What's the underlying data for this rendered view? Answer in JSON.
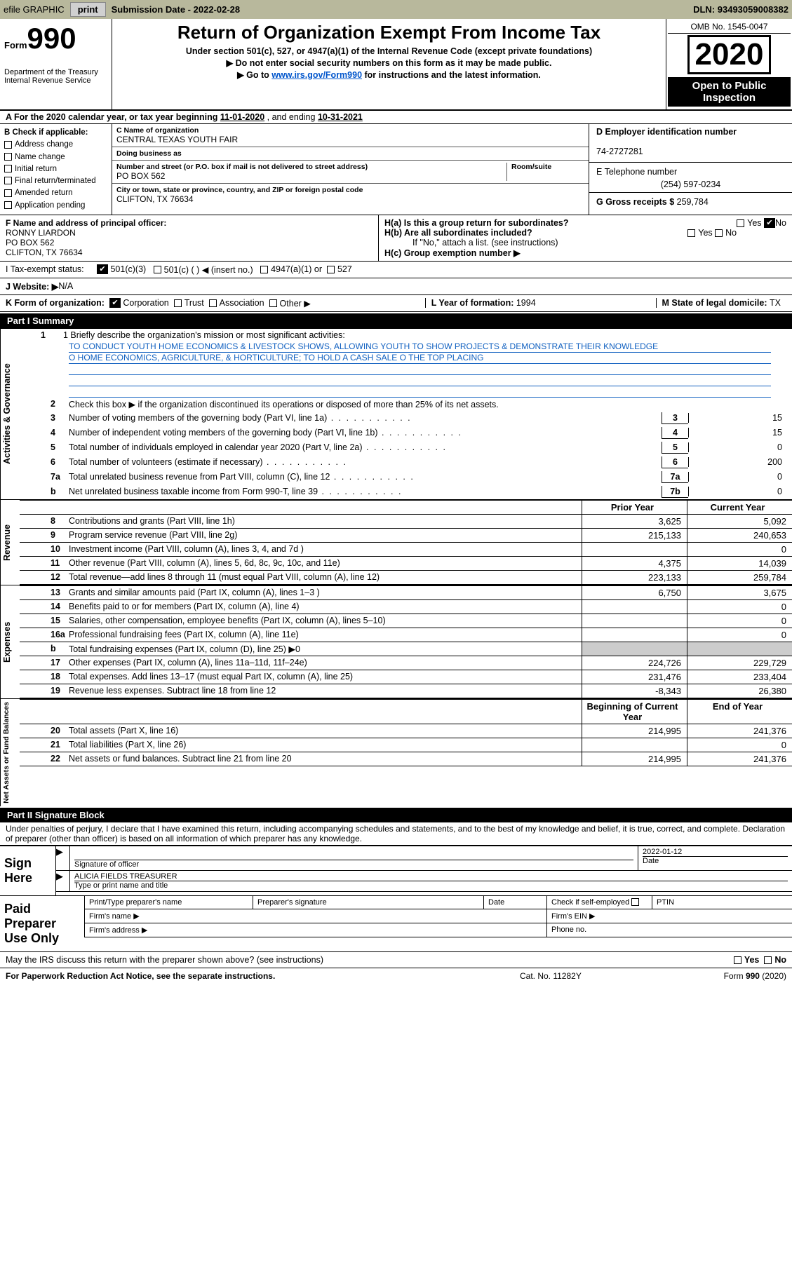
{
  "topbar": {
    "efile": "efile GRAPHIC",
    "print": "print",
    "subdate_lbl": "Submission Date - ",
    "subdate": "2022-02-28",
    "dln_lbl": "DLN: ",
    "dln": "93493059008382"
  },
  "header": {
    "form_prefix": "Form",
    "form_num": "990",
    "dept": "Department of the Treasury\nInternal Revenue Service",
    "title": "Return of Organization Exempt From Income Tax",
    "sub1": "Under section 501(c), 527, or 4947(a)(1) of the Internal Revenue Code (except private foundations)",
    "sub2": "▶ Do not enter social security numbers on this form as it may be made public.",
    "sub3_pre": "▶ Go to ",
    "sub3_link": "www.irs.gov/Form990",
    "sub3_post": " for instructions and the latest information.",
    "omb": "OMB No. 1545-0047",
    "year": "2020",
    "openpub": "Open to Public Inspection"
  },
  "rowA": {
    "pre": "A For the 2020 calendar year, or tax year beginning ",
    "begin": "11-01-2020",
    "mid": "   , and ending ",
    "end": "10-31-2021"
  },
  "boxB": {
    "hdr": "B Check if applicable:",
    "items": [
      "Address change",
      "Name change",
      "Initial return",
      "Final return/terminated",
      "Amended return",
      "Application pending"
    ]
  },
  "boxC": {
    "name_lbl": "C Name of organization",
    "name": "CENTRAL TEXAS YOUTH FAIR",
    "dba_lbl": "Doing business as",
    "dba": "",
    "addr_lbl": "Number and street (or P.O. box if mail is not delivered to street address)",
    "room_lbl": "Room/suite",
    "addr": "PO BOX 562",
    "city_lbl": "City or town, state or province, country, and ZIP or foreign postal code",
    "city": "CLIFTON, TX  76634"
  },
  "boxD": {
    "ein_lbl": "D Employer identification number",
    "ein": "74-2727281",
    "phone_lbl": "E Telephone number",
    "phone": "(254) 597-0234",
    "gross_lbl": "G Gross receipts $ ",
    "gross": "259,784"
  },
  "boxF": {
    "lbl": "F Name and address of principal officer:",
    "name": "RONNY LIARDON",
    "addr": "PO BOX 562",
    "city": "CLIFTON, TX  76634"
  },
  "boxH": {
    "ha": "H(a)  Is this a group return for subordinates?",
    "hb": "H(b)  Are all subordinates included?",
    "hb_note": "If \"No,\" attach a list. (see instructions)",
    "hc": "H(c)  Group exemption number ▶",
    "yes": "Yes",
    "no": "No"
  },
  "status": {
    "lbl": "I   Tax-exempt status:",
    "o1": "501(c)(3)",
    "o2": "501(c) (   ) ◀ (insert no.)",
    "o3": "4947(a)(1) or",
    "o4": "527"
  },
  "website": {
    "lbl": "J   Website: ▶",
    "val": "  N/A"
  },
  "krow": {
    "k": "K Form of organization:",
    "opts": [
      "Corporation",
      "Trust",
      "Association",
      "Other ▶"
    ],
    "L": "L Year of formation: ",
    "Lval": "1994",
    "M": "M State of legal domicile: ",
    "Mval": "TX"
  },
  "partI": {
    "hdr": "Part I      Summary",
    "mission_lbl": "1   Briefly describe the organization's mission or most significant activities:",
    "mission1": "TO CONDUCT YOUTH HOME ECONOMICS & LIVESTOCK SHOWS, ALLOWING YOUTH TO SHOW PROJECTS & DEMONSTRATE THEIR KNOWLEDGE",
    "mission2": "O HOME ECONOMICS, AGRICULTURE, & HORTICULTURE; TO HOLD A CASH SALE O THE TOP PLACING",
    "l2": "Check this box ▶        if the organization discontinued its operations or disposed of more than 25% of its net assets.",
    "side_act": "Activities & Governance",
    "side_rev": "Revenue",
    "side_exp": "Expenses",
    "side_net": "Net Assets or Fund Balances",
    "hdr_prior": "Prior Year",
    "hdr_curr": "Current Year",
    "hdr_begin": "Beginning of Current Year",
    "hdr_end": "End of Year",
    "rows_gov": [
      {
        "n": "3",
        "t": "Number of voting members of the governing body (Part VI, line 1a)",
        "c": "3",
        "v": "15"
      },
      {
        "n": "4",
        "t": "Number of independent voting members of the governing body (Part VI, line 1b)",
        "c": "4",
        "v": "15"
      },
      {
        "n": "5",
        "t": "Total number of individuals employed in calendar year 2020 (Part V, line 2a)",
        "c": "5",
        "v": "0"
      },
      {
        "n": "6",
        "t": "Total number of volunteers (estimate if necessary)",
        "c": "6",
        "v": "200"
      },
      {
        "n": "7a",
        "t": "Total unrelated business revenue from Part VIII, column (C), line 12",
        "c": "7a",
        "v": "0"
      },
      {
        "n": "b",
        "t": "Net unrelated business taxable income from Form 990-T, line 39",
        "c": "7b",
        "v": "0"
      }
    ],
    "rows_rev": [
      {
        "n": "8",
        "t": "Contributions and grants (Part VIII, line 1h)",
        "p": "3,625",
        "c": "5,092"
      },
      {
        "n": "9",
        "t": "Program service revenue (Part VIII, line 2g)",
        "p": "215,133",
        "c": "240,653"
      },
      {
        "n": "10",
        "t": "Investment income (Part VIII, column (A), lines 3, 4, and 7d )",
        "p": "",
        "c": "0"
      },
      {
        "n": "11",
        "t": "Other revenue (Part VIII, column (A), lines 5, 6d, 8c, 9c, 10c, and 11e)",
        "p": "4,375",
        "c": "14,039"
      },
      {
        "n": "12",
        "t": "Total revenue—add lines 8 through 11 (must equal Part VIII, column (A), line 12)",
        "p": "223,133",
        "c": "259,784"
      }
    ],
    "rows_exp": [
      {
        "n": "13",
        "t": "Grants and similar amounts paid (Part IX, column (A), lines 1–3 )",
        "p": "6,750",
        "c": "3,675"
      },
      {
        "n": "14",
        "t": "Benefits paid to or for members (Part IX, column (A), line 4)",
        "p": "",
        "c": "0"
      },
      {
        "n": "15",
        "t": "Salaries, other compensation, employee benefits (Part IX, column (A), lines 5–10)",
        "p": "",
        "c": "0"
      },
      {
        "n": "16a",
        "t": "Professional fundraising fees (Part IX, column (A), line 11e)",
        "p": "",
        "c": "0"
      },
      {
        "n": "b",
        "t": "Total fundraising expenses (Part IX, column (D), line 25) ▶0",
        "p": "shade",
        "c": "shade"
      },
      {
        "n": "17",
        "t": "Other expenses (Part IX, column (A), lines 11a–11d, 11f–24e)",
        "p": "224,726",
        "c": "229,729"
      },
      {
        "n": "18",
        "t": "Total expenses. Add lines 13–17 (must equal Part IX, column (A), line 25)",
        "p": "231,476",
        "c": "233,404"
      },
      {
        "n": "19",
        "t": "Revenue less expenses. Subtract line 18 from line 12",
        "p": "-8,343",
        "c": "26,380"
      }
    ],
    "rows_net": [
      {
        "n": "20",
        "t": "Total assets (Part X, line 16)",
        "p": "214,995",
        "c": "241,376"
      },
      {
        "n": "21",
        "t": "Total liabilities (Part X, line 26)",
        "p": "",
        "c": "0"
      },
      {
        "n": "22",
        "t": "Net assets or fund balances. Subtract line 21 from line 20",
        "p": "214,995",
        "c": "241,376"
      }
    ]
  },
  "partII": {
    "hdr": "Part II     Signature Block",
    "decl": "Under penalties of perjury, I declare that I have examined this return, including accompanying schedules and statements, and to the best of my knowledge and belief, it is true, correct, and complete. Declaration of preparer (other than officer) is based on all information of which preparer has any knowledge.",
    "sign_here": "Sign Here",
    "sig_officer_lbl": "Signature of officer",
    "sig_date": "2022-01-12",
    "date_lbl": "Date",
    "typed_name": "ALICIA FIELDS TREASURER",
    "typed_lbl": "Type or print name and title",
    "paid": "Paid Preparer Use Only",
    "prep_name": "Print/Type preparer's name",
    "prep_sig": "Preparer's signature",
    "prep_date": "Date",
    "prep_check": "Check        if self-employed",
    "ptin": "PTIN",
    "firm_name": "Firm's name   ▶",
    "firm_ein": "Firm's EIN ▶",
    "firm_addr": "Firm's address ▶",
    "phone": "Phone no."
  },
  "mayirs": "May the IRS discuss this return with the preparer shown above? (see instructions)",
  "footer": {
    "f1": "For Paperwork Reduction Act Notice, see the separate instructions.",
    "f2": "Cat. No. 11282Y",
    "f3": "Form 990 (2020)"
  }
}
